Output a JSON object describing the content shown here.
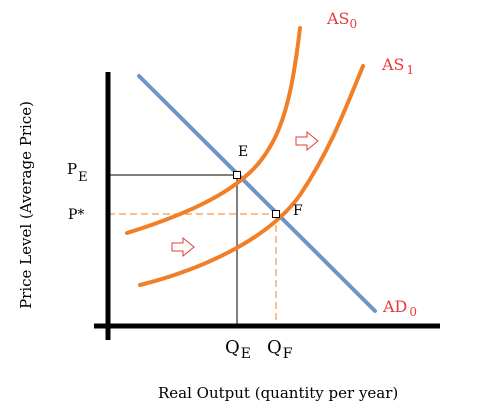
{
  "labels": {
    "as0_main": "AS",
    "as0_sub": "0",
    "as1_main": "AS",
    "as1_sub": "1",
    "ad0_main": "AD",
    "ad0_sub": "0",
    "point_e": "E",
    "point_f": "F",
    "pe_main": "P",
    "pe_sub": "E",
    "pstar": "P*",
    "qe_main": "Q",
    "qe_sub": "E",
    "qf_main": "Q",
    "qf_sub": "F",
    "x_axis": "Real Output (quantity per year)",
    "y_axis": "Price Level (Average Price)"
  },
  "colors": {
    "as_curve": "#f07f27",
    "ad_curve": "#6e95c8",
    "curve_label": "#e8393a",
    "shift_arrow": "#e8393a",
    "axis": "#000000",
    "guide_e": "#000000",
    "guide_f": "#f07f27"
  },
  "shift_arrows": [
    {
      "name": "shift-arrow-right-upper",
      "direction": "right"
    },
    {
      "name": "shift-arrow-right-lower",
      "direction": "right"
    }
  ]
}
